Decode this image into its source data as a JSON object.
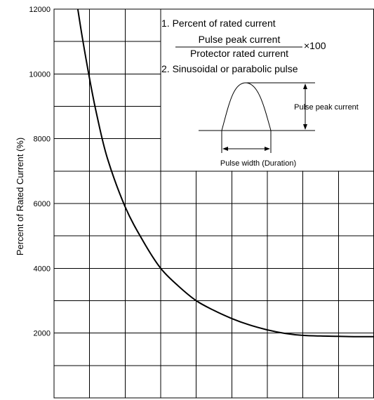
{
  "chart_data": {
    "type": "line",
    "title": "",
    "xlabel": "",
    "ylabel": "Percent of Rated Current (%)",
    "ylim": [
      0,
      12000
    ],
    "y_ticks": [
      2000,
      4000,
      6000,
      8000,
      10000,
      12000
    ],
    "x_columns": 9,
    "grid": true,
    "legend": "none",
    "series": [
      {
        "color": "#000000",
        "x": [
          0.67,
          0.8,
          1.0,
          1.2,
          1.5,
          2.0,
          2.5,
          3.0,
          3.5,
          4.0,
          4.5,
          5.0,
          5.5,
          6.0,
          6.5,
          7.0,
          7.5,
          8.0,
          8.5,
          9.0
        ],
        "y": [
          12000,
          11100,
          9850,
          8750,
          7400,
          5900,
          4850,
          4000,
          3450,
          3000,
          2700,
          2450,
          2250,
          2100,
          1990,
          1930,
          1910,
          1900,
          1890,
          1890
        ]
      }
    ]
  },
  "notes": {
    "item1": "1. Percent of rated current",
    "numerator": "Pulse peak current",
    "denominator": "Protector rated current",
    "multiplier": "×100",
    "item2": "2. Sinusoidal or parabolic pulse",
    "peak_label": "Pulse peak current",
    "width_label": "Pulse width (Duration)"
  }
}
